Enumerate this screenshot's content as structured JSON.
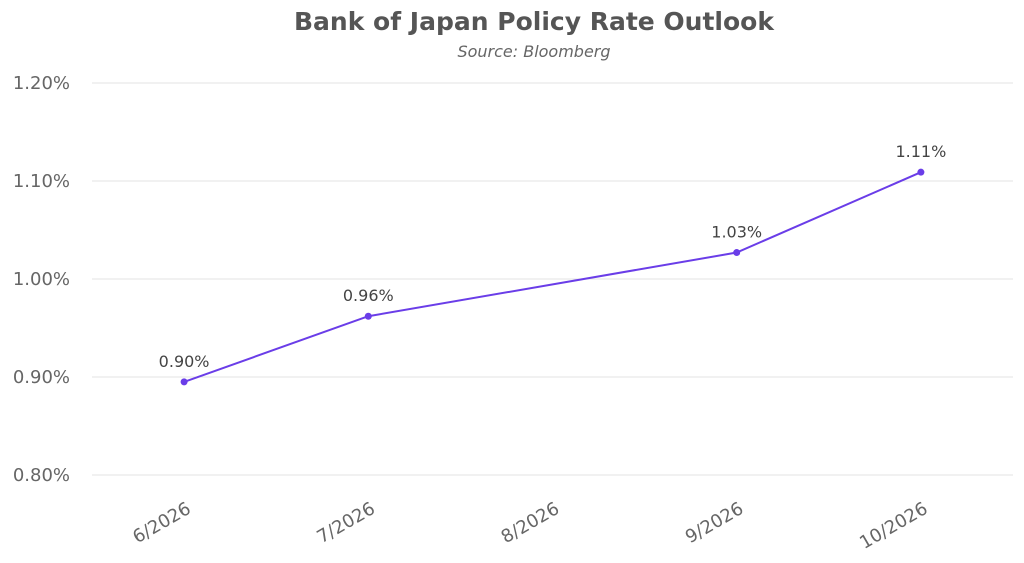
{
  "chart_data": {
    "type": "line",
    "title": "Bank of Japan Policy Rate Outlook",
    "subtitle": "Source: Bloomberg",
    "xlabel": "",
    "ylabel": "",
    "categories": [
      "6/2026",
      "7/2026",
      "8/2026",
      "9/2026",
      "10/2026"
    ],
    "series": [
      {
        "name": "Policy Rate",
        "color": "#6a3de8",
        "values": [
          0.895,
          0.962,
          null,
          1.027,
          1.109
        ],
        "labels": [
          "0.90%",
          "0.96%",
          null,
          "1.03%",
          "1.11%"
        ]
      }
    ],
    "ylim": [
      0.8,
      1.2
    ],
    "yticks": [
      0.8,
      0.9,
      1.0,
      1.1,
      1.2
    ],
    "ytick_labels": [
      "0.80%",
      "0.90%",
      "1.00%",
      "1.10%",
      "1.20%"
    ],
    "grid": true,
    "legend": "none"
  }
}
